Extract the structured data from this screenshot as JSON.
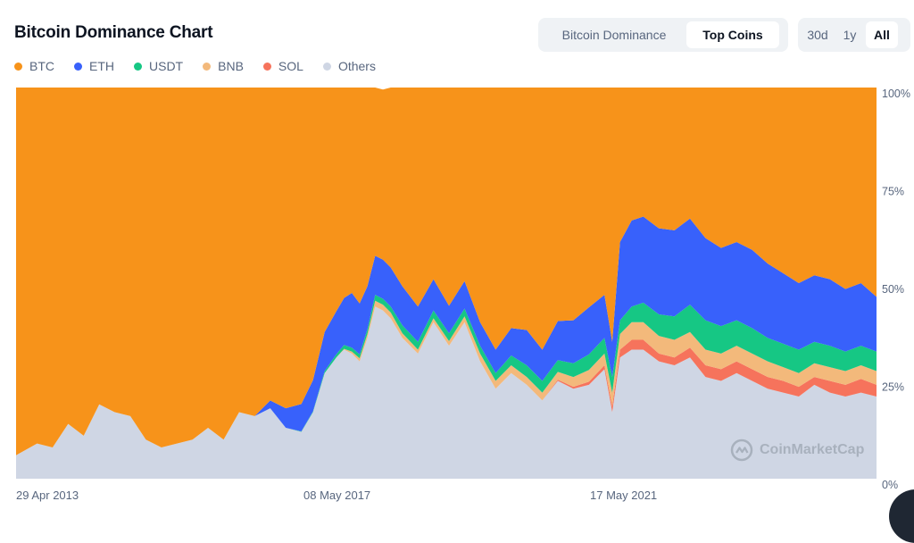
{
  "header": {
    "title": "Bitcoin Dominance Chart"
  },
  "view_toggle": {
    "options": [
      "Bitcoin Dominance",
      "Top Coins"
    ],
    "active": "Top Coins"
  },
  "range_toggle": {
    "options": [
      "30d",
      "1y",
      "All"
    ],
    "active": "All"
  },
  "watermark": {
    "text": "CoinMarketCap"
  },
  "colors": {
    "BTC": "#f7931a",
    "ETH": "#3861fb",
    "USDT": "#16c784",
    "BNB": "#f3b97b",
    "SOL": "#f6735c",
    "Others": "#cfd6e4"
  },
  "chart_data": {
    "type": "area",
    "stacked": true,
    "title": "Bitcoin Dominance Chart",
    "legend": [
      "BTC",
      "ETH",
      "USDT",
      "BNB",
      "SOL",
      "Others"
    ],
    "y_axis": {
      "min": 0,
      "max": 100,
      "ticks": [
        "0%",
        "25%",
        "50%",
        "75%",
        "100%"
      ],
      "position": "right"
    },
    "x_axis": {
      "ticks": [
        "29 Apr 2013",
        "08 May 2017",
        "17 May 2021"
      ]
    },
    "x": [
      2013.33,
      2013.6,
      2013.8,
      2014.0,
      2014.2,
      2014.4,
      2014.6,
      2014.8,
      2015.0,
      2015.2,
      2015.4,
      2015.6,
      2015.8,
      2016.0,
      2016.2,
      2016.4,
      2016.6,
      2016.8,
      2017.0,
      2017.15,
      2017.3,
      2017.45,
      2017.55,
      2017.65,
      2017.75,
      2017.85,
      2017.95,
      2018.05,
      2018.15,
      2018.3,
      2018.5,
      2018.7,
      2018.9,
      2019.1,
      2019.3,
      2019.5,
      2019.7,
      2019.9,
      2020.1,
      2020.3,
      2020.5,
      2020.7,
      2020.9,
      2021.0,
      2021.1,
      2021.25,
      2021.4,
      2021.6,
      2021.8,
      2022.0,
      2022.2,
      2022.4,
      2022.6,
      2022.8,
      2023.0,
      2023.2,
      2023.4,
      2023.6,
      2023.8,
      2024.0,
      2024.2,
      2024.4
    ],
    "series": [
      {
        "name": "Others",
        "values": [
          6,
          9,
          8,
          14,
          11,
          19,
          17,
          16,
          10,
          8,
          9,
          10,
          13,
          10,
          17,
          16,
          18,
          13,
          12,
          17,
          27,
          31,
          33,
          32,
          30,
          36,
          44,
          43,
          41,
          36,
          32,
          40,
          34,
          40,
          30,
          23,
          27,
          24,
          20,
          25,
          23,
          24,
          28,
          17,
          31,
          33,
          33,
          30,
          29,
          31,
          26,
          25,
          27,
          25,
          23,
          22,
          21,
          24,
          22,
          21,
          22,
          21
        ]
      },
      {
        "name": "SOL",
        "values": [
          0,
          0,
          0,
          0,
          0,
          0,
          0,
          0,
          0,
          0,
          0,
          0,
          0,
          0,
          0,
          0,
          0,
          0,
          0,
          0,
          0,
          0,
          0,
          0,
          0,
          0,
          0,
          0,
          0,
          0,
          0,
          0,
          0,
          0,
          0,
          0,
          0,
          0,
          0,
          0.3,
          0.5,
          0.8,
          1,
          1.5,
          2,
          2.5,
          2.5,
          2,
          2,
          2.5,
          3,
          3,
          3,
          3,
          3,
          3,
          2.5,
          2,
          3,
          3,
          3.5,
          3
        ]
      },
      {
        "name": "BNB",
        "values": [
          0,
          0,
          0,
          0,
          0,
          0,
          0,
          0,
          0,
          0,
          0,
          0,
          0,
          0,
          0,
          0,
          0,
          0,
          0,
          0,
          0,
          0,
          0.2,
          0.5,
          0.8,
          1,
          1.5,
          1.5,
          1.5,
          1.2,
          1,
          1,
          1.2,
          1.5,
          2,
          2,
          2,
          2,
          2,
          2,
          2.5,
          3,
          3,
          3.5,
          4,
          4.5,
          4.5,
          4.5,
          4.5,
          4,
          4,
          4,
          4,
          4,
          4,
          3.5,
          3.5,
          3.5,
          3.5,
          3.5,
          3.5,
          3.5
        ]
      },
      {
        "name": "USDT",
        "values": [
          0,
          0,
          0,
          0,
          0,
          0,
          0,
          0,
          0,
          0,
          0,
          0,
          0,
          0,
          0,
          0,
          0,
          0,
          0.1,
          0.2,
          0.5,
          0.8,
          1,
          1,
          1,
          1.2,
          1.5,
          1.5,
          1.5,
          2,
          2,
          2,
          2,
          2,
          2,
          2,
          2.5,
          3,
          3,
          3,
          3.5,
          4,
          4,
          4,
          3.5,
          4,
          5,
          5.5,
          6,
          7,
          7.5,
          7,
          6.5,
          6.5,
          6,
          6,
          6,
          5.5,
          5.5,
          5,
          5,
          5
        ]
      },
      {
        "name": "ETH",
        "values": [
          0,
          0,
          0,
          0,
          0,
          0,
          0,
          0,
          0,
          0,
          0,
          0,
          0,
          0,
          0,
          0,
          2,
          5,
          7,
          8,
          10,
          11,
          12,
          14,
          13,
          11,
          10,
          10,
          10,
          10,
          9,
          8,
          7,
          7,
          6,
          6,
          7,
          9,
          8,
          10,
          11,
          12,
          11,
          9,
          20,
          22,
          22,
          22,
          22,
          22,
          21,
          20,
          20,
          20,
          19,
          18,
          17,
          17,
          17,
          16,
          16,
          14
        ]
      },
      {
        "name": "BTC",
        "values": [
          94,
          91,
          92,
          86,
          89,
          81,
          83,
          84,
          90,
          92,
          91,
          90,
          87,
          90,
          83,
          84,
          80,
          82,
          81,
          75,
          62.5,
          57.2,
          53.8,
          52.5,
          55.2,
          50.8,
          43,
          43.5,
          46,
          50.8,
          56,
          49,
          55.8,
          49.5,
          60,
          67,
          61.5,
          62,
          67,
          59.7,
          59.5,
          56.2,
          53,
          65,
          39.5,
          34,
          33,
          36,
          36.5,
          33.5,
          38.5,
          41,
          39.5,
          41.5,
          45,
          47.5,
          50,
          48.5,
          49,
          51.5,
          50,
          53.5
        ]
      }
    ]
  }
}
